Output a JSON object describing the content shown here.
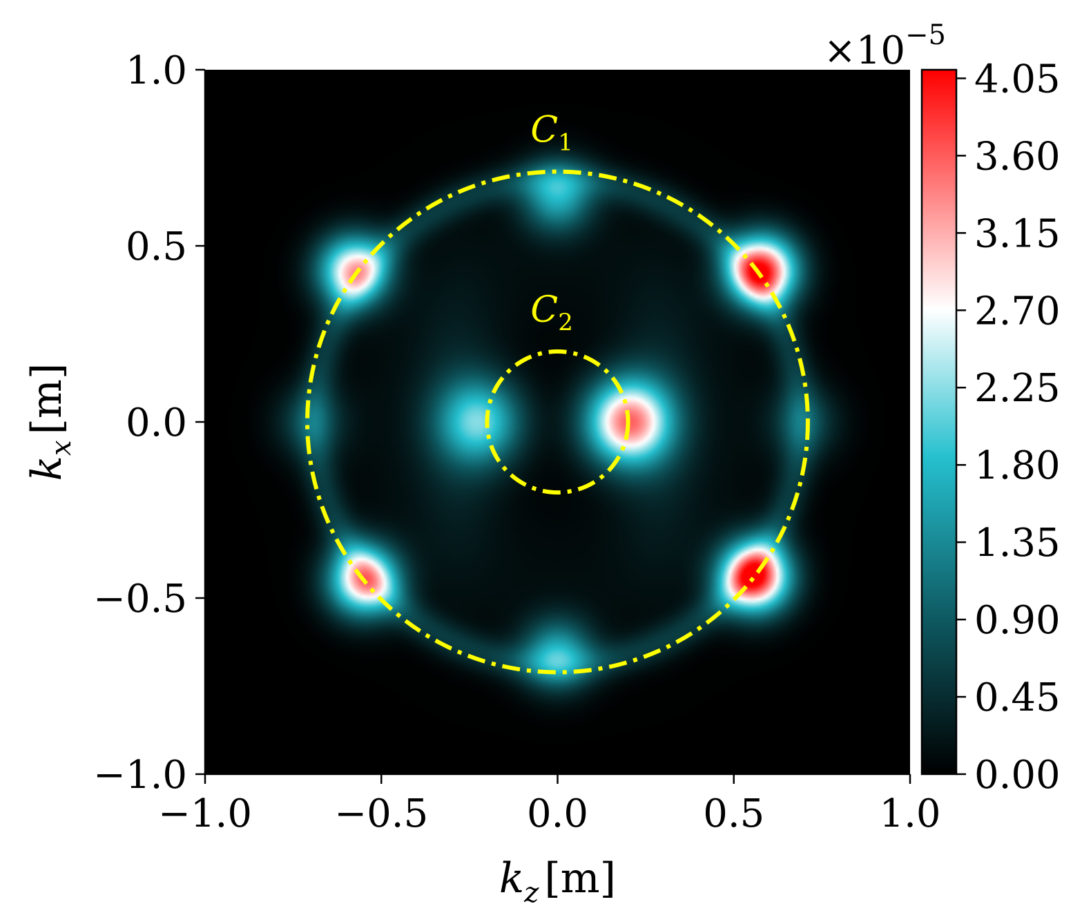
{
  "chart_data": {
    "type": "heatmap",
    "title": "",
    "xlabel": {
      "main": "k",
      "sub": "z",
      "unit": "[m]"
    },
    "ylabel": {
      "main": "k",
      "sub": "x",
      "unit": "[m]"
    },
    "xlim": [
      -1.0,
      1.0
    ],
    "ylim": [
      -1.0,
      1.0
    ],
    "xticks": [
      -1.0,
      -0.5,
      0.0,
      0.5,
      1.0
    ],
    "xtick_labels": [
      "−1.0",
      "−0.5",
      "0.0",
      "0.5",
      "1.0"
    ],
    "yticks": [
      -1.0,
      -0.5,
      0.0,
      0.5,
      1.0
    ],
    "ytick_labels": [
      "−1.0",
      "−0.5",
      "0.0",
      "0.5",
      "1.0"
    ],
    "colorbar": {
      "min": 0.0,
      "max": 4.1,
      "ticks": [
        0.0,
        0.45,
        0.9,
        1.35,
        1.8,
        2.25,
        2.7,
        3.15,
        3.6,
        4.05
      ],
      "tick_labels": [
        "0.00",
        "0.45",
        "0.90",
        "1.35",
        "1.80",
        "2.25",
        "2.70",
        "3.15",
        "3.60",
        "4.05"
      ],
      "multiplier": {
        "base": "×10",
        "exponent": "−5"
      },
      "colors": [
        "#000000",
        "#0e5961",
        "#26c0cf",
        "#ffffff",
        "#ff0000"
      ]
    },
    "circles": [
      {
        "name": "C",
        "sub": "1",
        "center": [
          0.0,
          0.0
        ],
        "radius": 0.71,
        "color": "#ffff00",
        "style": "dash-dot",
        "label_at": [
          -0.01,
          0.83
        ]
      },
      {
        "name": "C",
        "sub": "2",
        "center": [
          0.0,
          0.0
        ],
        "radius": 0.2,
        "color": "#ffff00",
        "style": "dash-dot",
        "label_at": [
          -0.01,
          0.32
        ]
      }
    ],
    "intensity_features": [
      {
        "kz": 0.0,
        "kx": 0.64,
        "amp": 1.6
      },
      {
        "kz": 0.0,
        "kx": -0.66,
        "amp": 1.6
      },
      {
        "kz": 0.58,
        "kx": 0.43,
        "amp": 3.9
      },
      {
        "kz": 0.56,
        "kx": -0.44,
        "amp": 4.0
      },
      {
        "kz": -0.58,
        "kx": 0.43,
        "amp": 2.9
      },
      {
        "kz": -0.55,
        "kx": -0.45,
        "amp": 3.1
      },
      {
        "kz": 0.2,
        "kx": 0.0,
        "amp": 3.3
      },
      {
        "kz": -0.22,
        "kx": 0.0,
        "amp": 1.9
      },
      {
        "kz": 0.7,
        "kx": 0.0,
        "amp": 0.7
      },
      {
        "kz": -0.7,
        "kx": 0.0,
        "amp": 0.7
      }
    ]
  }
}
